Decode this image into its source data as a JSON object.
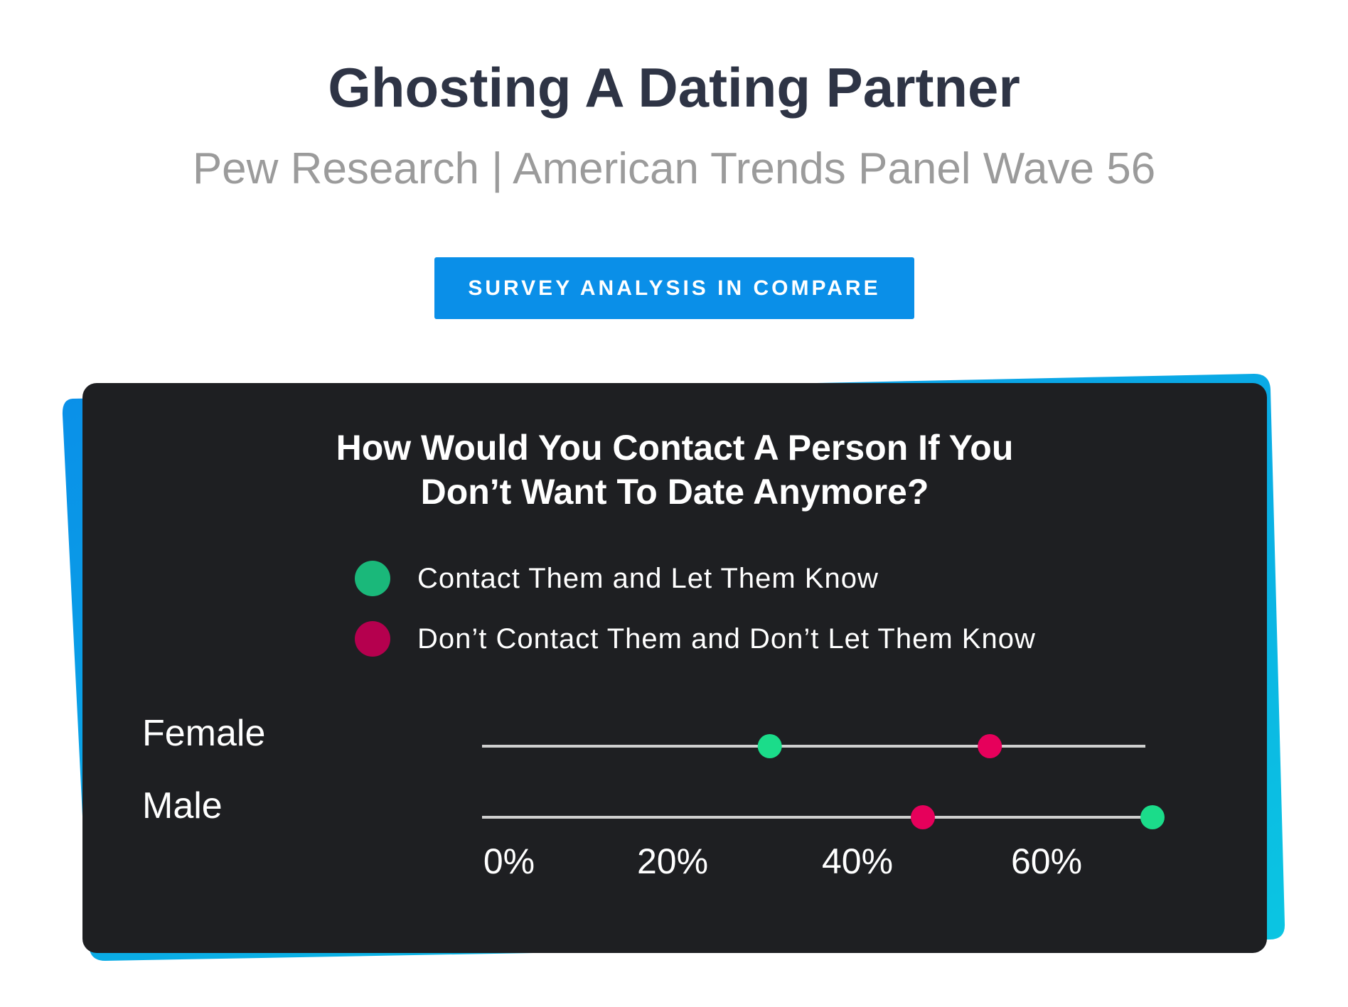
{
  "header": {
    "title": "Ghosting A Dating Partner",
    "subtitle": "Pew Research | American Trends Panel Wave 56",
    "cta_label": "SURVEY ANALYSIS IN COMPARE",
    "cta_color": "#0a8fe8"
  },
  "chart_data": {
    "type": "dot",
    "title_lines": [
      "How Would You Contact A Person If You",
      "Don’t Want To Date Anymore?"
    ],
    "categories": [
      "Female",
      "Male"
    ],
    "series": [
      {
        "name": "Contact Them and Let Them Know",
        "color": "#1bdc8a",
        "legend_color": "#1ab87a",
        "values": [
          30,
          70
        ]
      },
      {
        "name": "Don’t Contact Them and Don’t Let Them Know",
        "color": "#e6005b",
        "legend_color": "#b5004e",
        "values": [
          53,
          46
        ]
      }
    ],
    "x_ticks": [
      "0%",
      "20%",
      "40%",
      "60%"
    ],
    "x_range": [
      0,
      70
    ],
    "legend_position": "top",
    "background": "#1e1f22"
  }
}
